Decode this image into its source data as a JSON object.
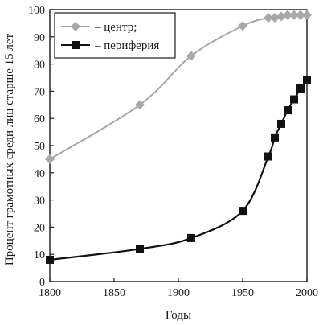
{
  "chart_data": {
    "type": "line",
    "xlabel": "Годы",
    "ylabel": "Процент грамотных среди лиц старше 15 лет",
    "xlim": [
      1800,
      2000
    ],
    "ylim": [
      0,
      100
    ],
    "x_ticks": [
      "1800",
      "1850",
      "1900",
      "1950",
      "2000"
    ],
    "y_ticks": [
      "0",
      "10",
      "20",
      "30",
      "40",
      "50",
      "60",
      "70",
      "80",
      "90",
      "100"
    ],
    "grid": false,
    "legend_position": "top-left",
    "series": [
      {
        "name": "– центр;",
        "color": "#a8a8a8",
        "marker": "diamond",
        "points": [
          {
            "x": 1800,
            "y": 45
          },
          {
            "x": 1870,
            "y": 65
          },
          {
            "x": 1910,
            "y": 83
          },
          {
            "x": 1950,
            "y": 94
          },
          {
            "x": 1970,
            "y": 97
          },
          {
            "x": 1975,
            "y": 97
          },
          {
            "x": 1980,
            "y": 97.5
          },
          {
            "x": 1985,
            "y": 98
          },
          {
            "x": 1990,
            "y": 98
          },
          {
            "x": 1995,
            "y": 98
          },
          {
            "x": 2000,
            "y": 98
          }
        ]
      },
      {
        "name": "– периферия",
        "color": "#111111",
        "marker": "square",
        "points": [
          {
            "x": 1800,
            "y": 8
          },
          {
            "x": 1870,
            "y": 12
          },
          {
            "x": 1910,
            "y": 16
          },
          {
            "x": 1950,
            "y": 26
          },
          {
            "x": 1970,
            "y": 46
          },
          {
            "x": 1975,
            "y": 53
          },
          {
            "x": 1980,
            "y": 58
          },
          {
            "x": 1985,
            "y": 63
          },
          {
            "x": 1990,
            "y": 67
          },
          {
            "x": 1995,
            "y": 71
          },
          {
            "x": 2000,
            "y": 74
          }
        ]
      }
    ]
  }
}
